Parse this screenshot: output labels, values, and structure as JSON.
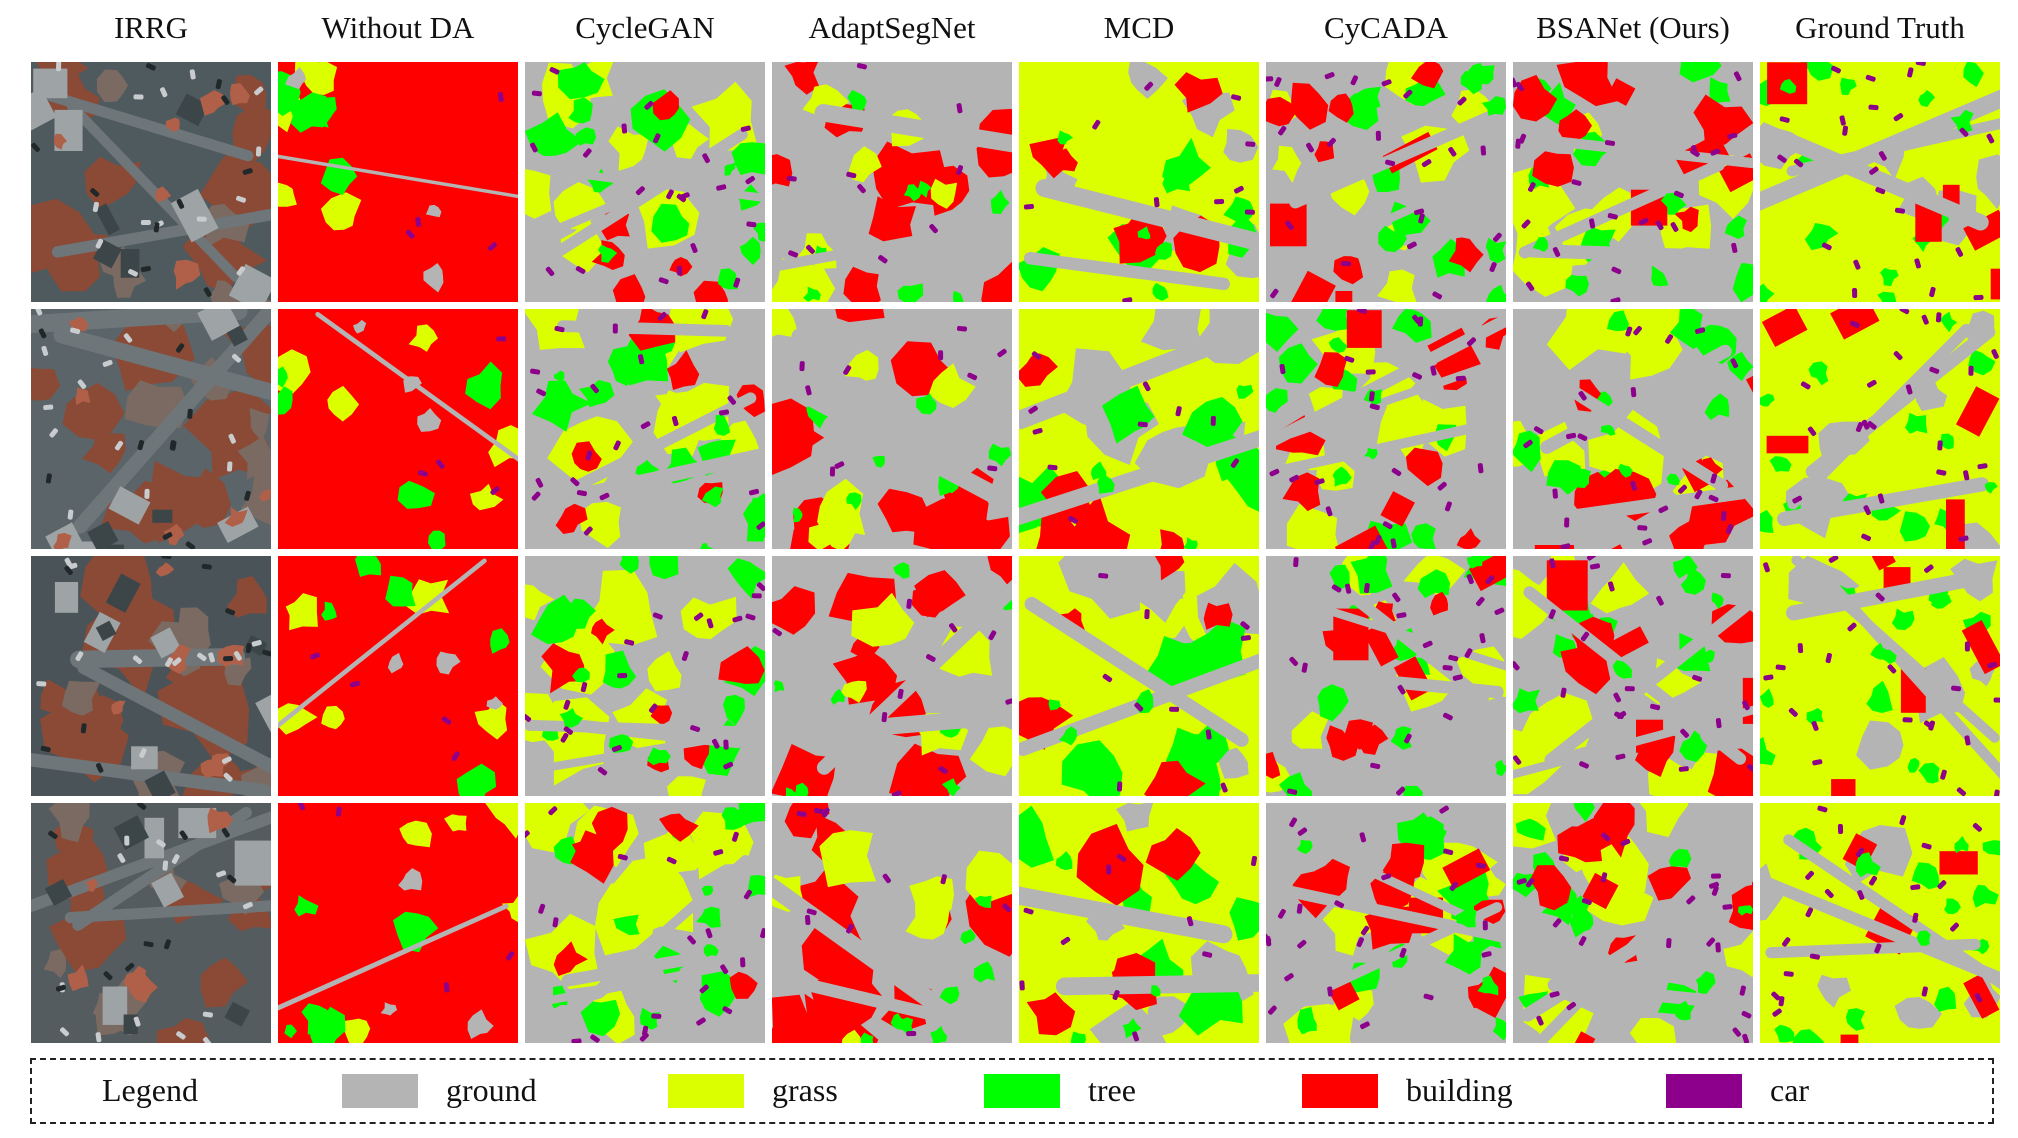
{
  "columns": [
    "IRRG",
    "Without DA",
    "CycleGAN",
    "AdaptSegNet",
    "MCD",
    "CyCADA",
    "BSANet (Ours)",
    "Ground Truth"
  ],
  "legend": {
    "title": "Legend",
    "items": [
      {
        "label": "ground",
        "color": "#b4b4b4"
      },
      {
        "label": "grass",
        "color": "#dcff00"
      },
      {
        "label": "tree",
        "color": "#00ff00"
      },
      {
        "label": "building",
        "color": "#ff0000"
      },
      {
        "label": "car",
        "color": "#8c008c"
      }
    ]
  },
  "colors": {
    "ground": "#b4b4b4",
    "grass": "#dcff00",
    "tree": "#00ff00",
    "building": "#ff0000",
    "car": "#8c008c"
  }
}
